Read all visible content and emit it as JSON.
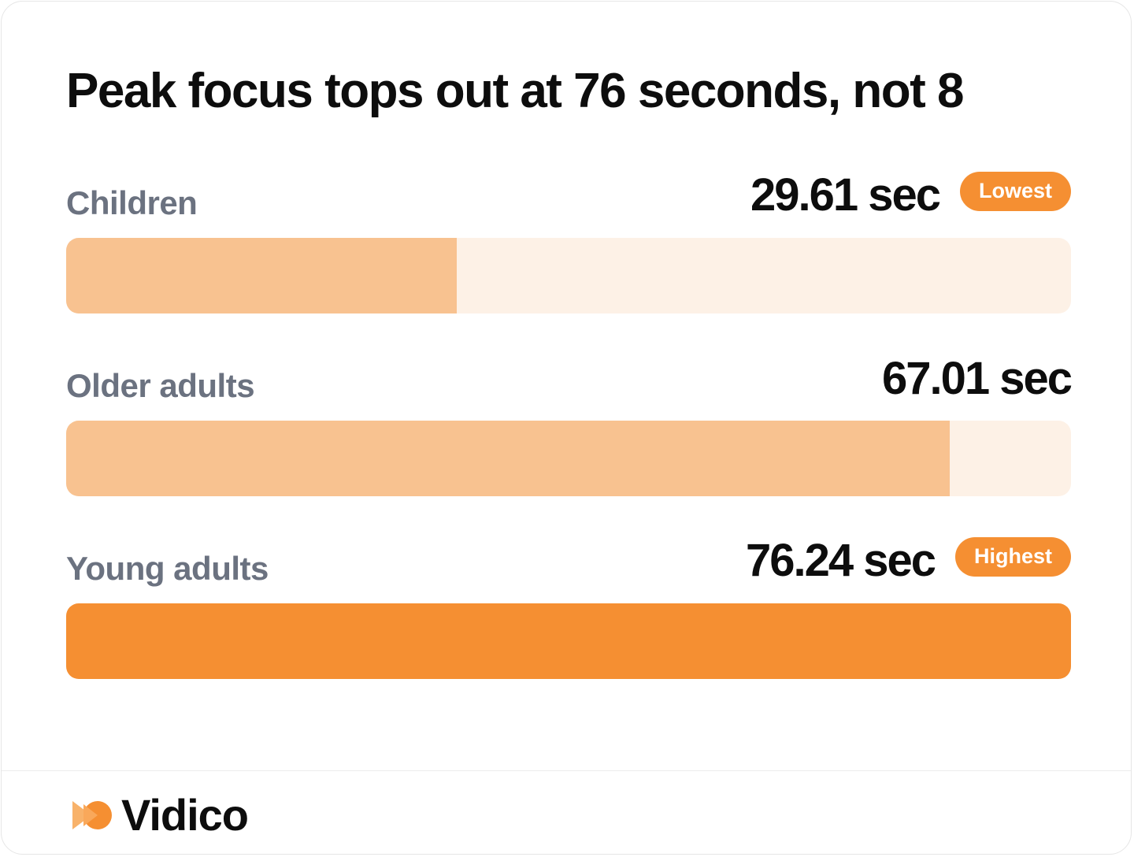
{
  "chart_data": {
    "type": "bar",
    "orientation": "horizontal",
    "title": "Peak focus tops out at 76 seconds, not 8",
    "unit": "sec",
    "categories": [
      "Children",
      "Older adults",
      "Young adults"
    ],
    "values": [
      29.61,
      67.01,
      76.24
    ],
    "value_labels": [
      "29.61 sec",
      "67.01 sec",
      "76.24 sec"
    ],
    "badges": [
      "Lowest",
      "",
      "Highest"
    ],
    "xlim": [
      0,
      76.24
    ],
    "grid": false,
    "legend": "none"
  },
  "brand": {
    "name": "Vidico",
    "logo_icon": "vidico-logo-icon"
  },
  "colors": {
    "accent": "#f58f32",
    "bar": "#f8c290",
    "track": "#fdf1e6",
    "label": "#6b7280",
    "text": "#0d0d0d"
  }
}
